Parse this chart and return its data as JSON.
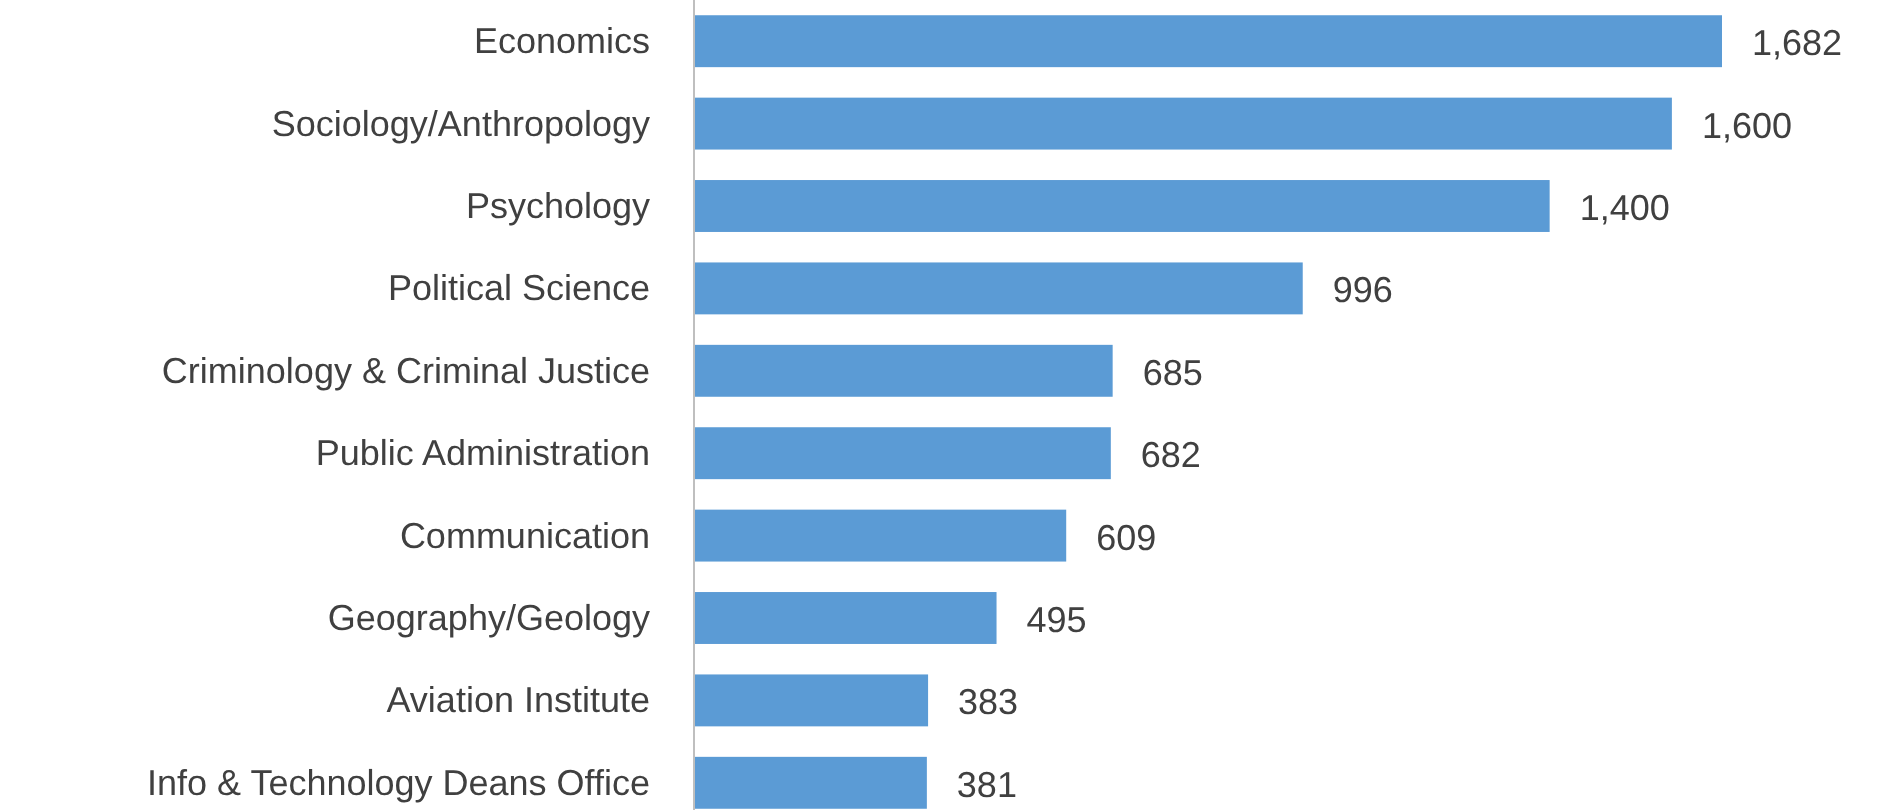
{
  "chart_data": {
    "type": "bar",
    "orientation": "horizontal",
    "categories": [
      "Economics",
      "Sociology/Anthropology",
      "Psychology",
      "Political Science",
      "Criminology & Criminal Justice",
      "Public Administration",
      "Communication",
      "Geography/Geology",
      "Aviation Institute",
      "Info & Technology Deans Office"
    ],
    "values": [
      1682,
      1600,
      1400,
      996,
      685,
      682,
      609,
      495,
      383,
      381
    ],
    "value_labels": [
      "1,682",
      "1,600",
      "1,400",
      "996",
      "685",
      "682",
      "609",
      "495",
      "383",
      "381"
    ],
    "color": "#5b9bd5"
  }
}
